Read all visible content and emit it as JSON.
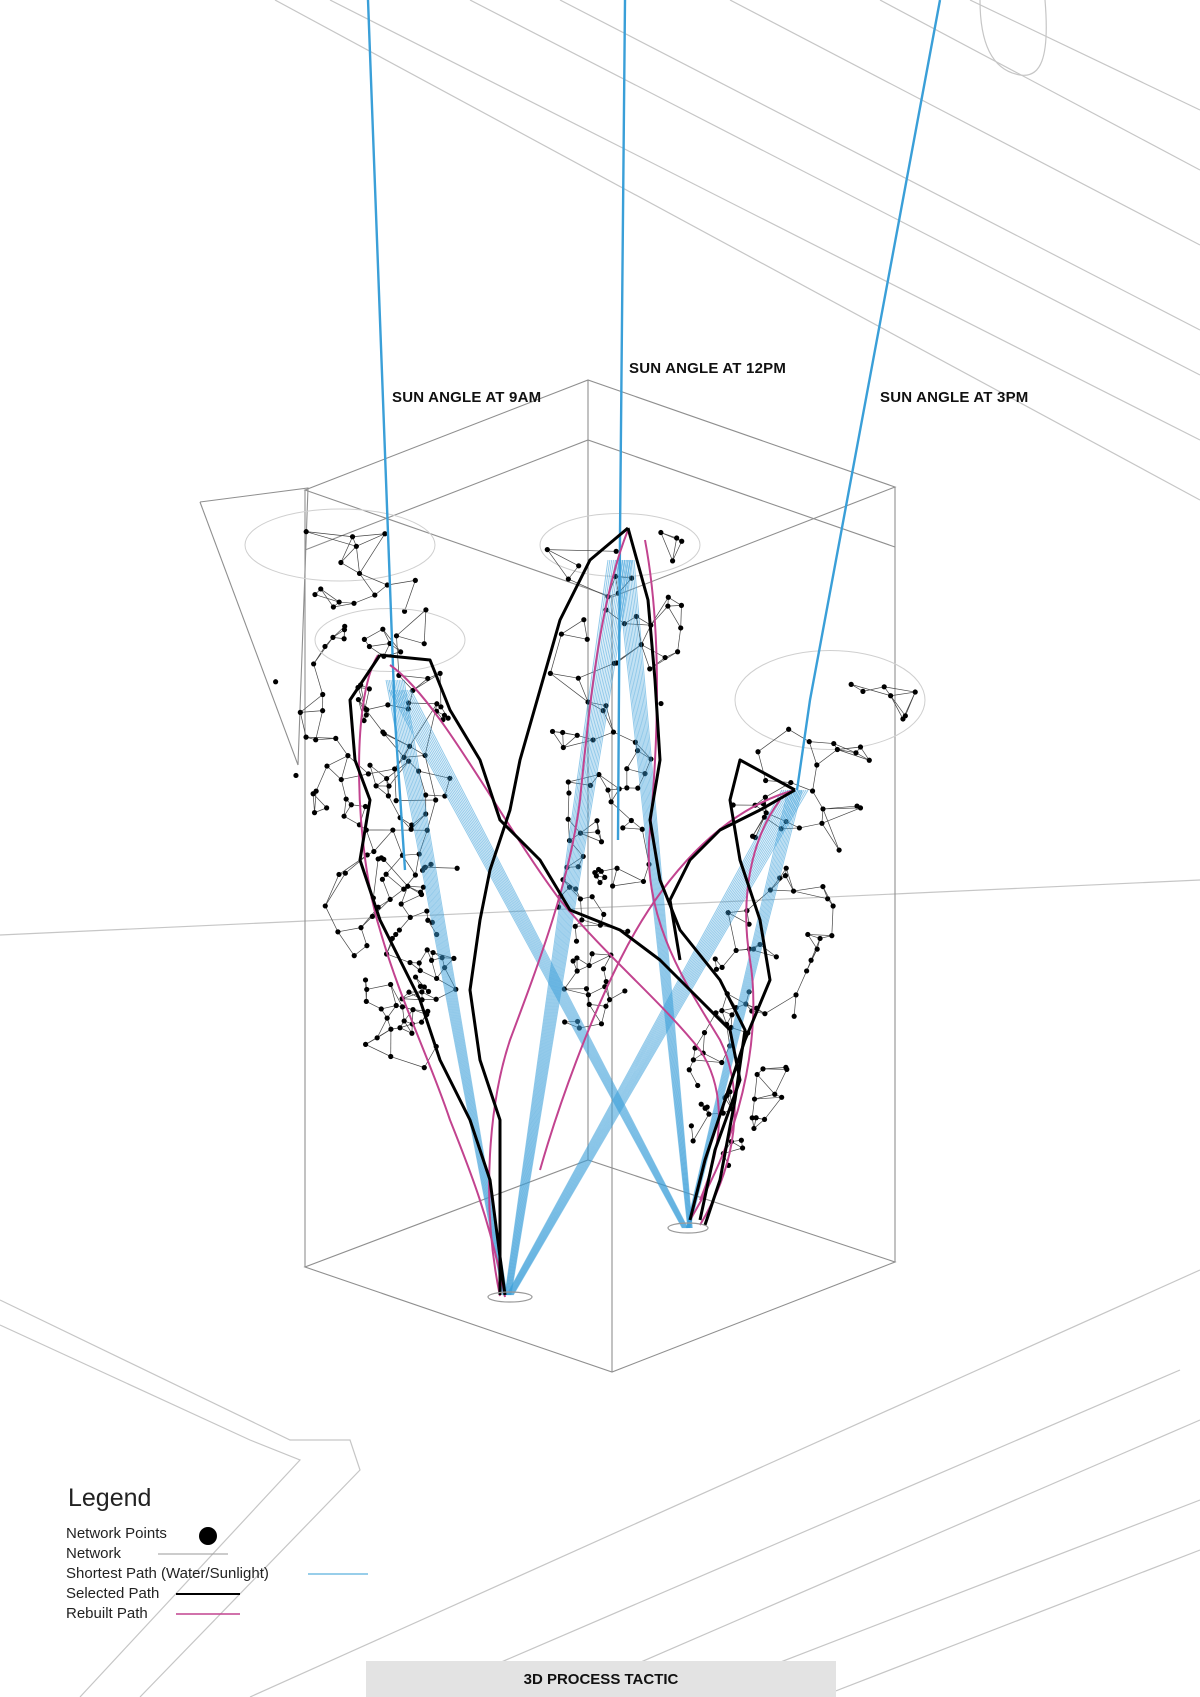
{
  "annotations": {
    "sun_9am": "SUN ANGLE AT 9AM",
    "sun_12pm": "SUN ANGLE AT 12PM",
    "sun_3pm": "SUN ANGLE AT 3PM"
  },
  "legend": {
    "title": "Legend",
    "items": [
      {
        "label": "Network Points",
        "symbol": "dot",
        "color": "#000000"
      },
      {
        "label": "Network",
        "symbol": "thin-line",
        "color": "#999999"
      },
      {
        "label": "Shortest Path (Water/Sunlight)",
        "symbol": "line",
        "color": "#5ab0de"
      },
      {
        "label": "Selected Path",
        "symbol": "thick-line",
        "color": "#000000"
      },
      {
        "label": "Rebuilt Path",
        "symbol": "line",
        "color": "#c2438f"
      }
    ]
  },
  "footer": {
    "label": "3D PROCESS TACTIC"
  },
  "colors": {
    "sunlight": "#3a9fd8",
    "selected": "#000000",
    "rebuilt": "#c2438f",
    "network": "#444444",
    "context": "#bdbdbd",
    "box": "#8f8f8f",
    "footer_bg": "#e3e3e3"
  }
}
